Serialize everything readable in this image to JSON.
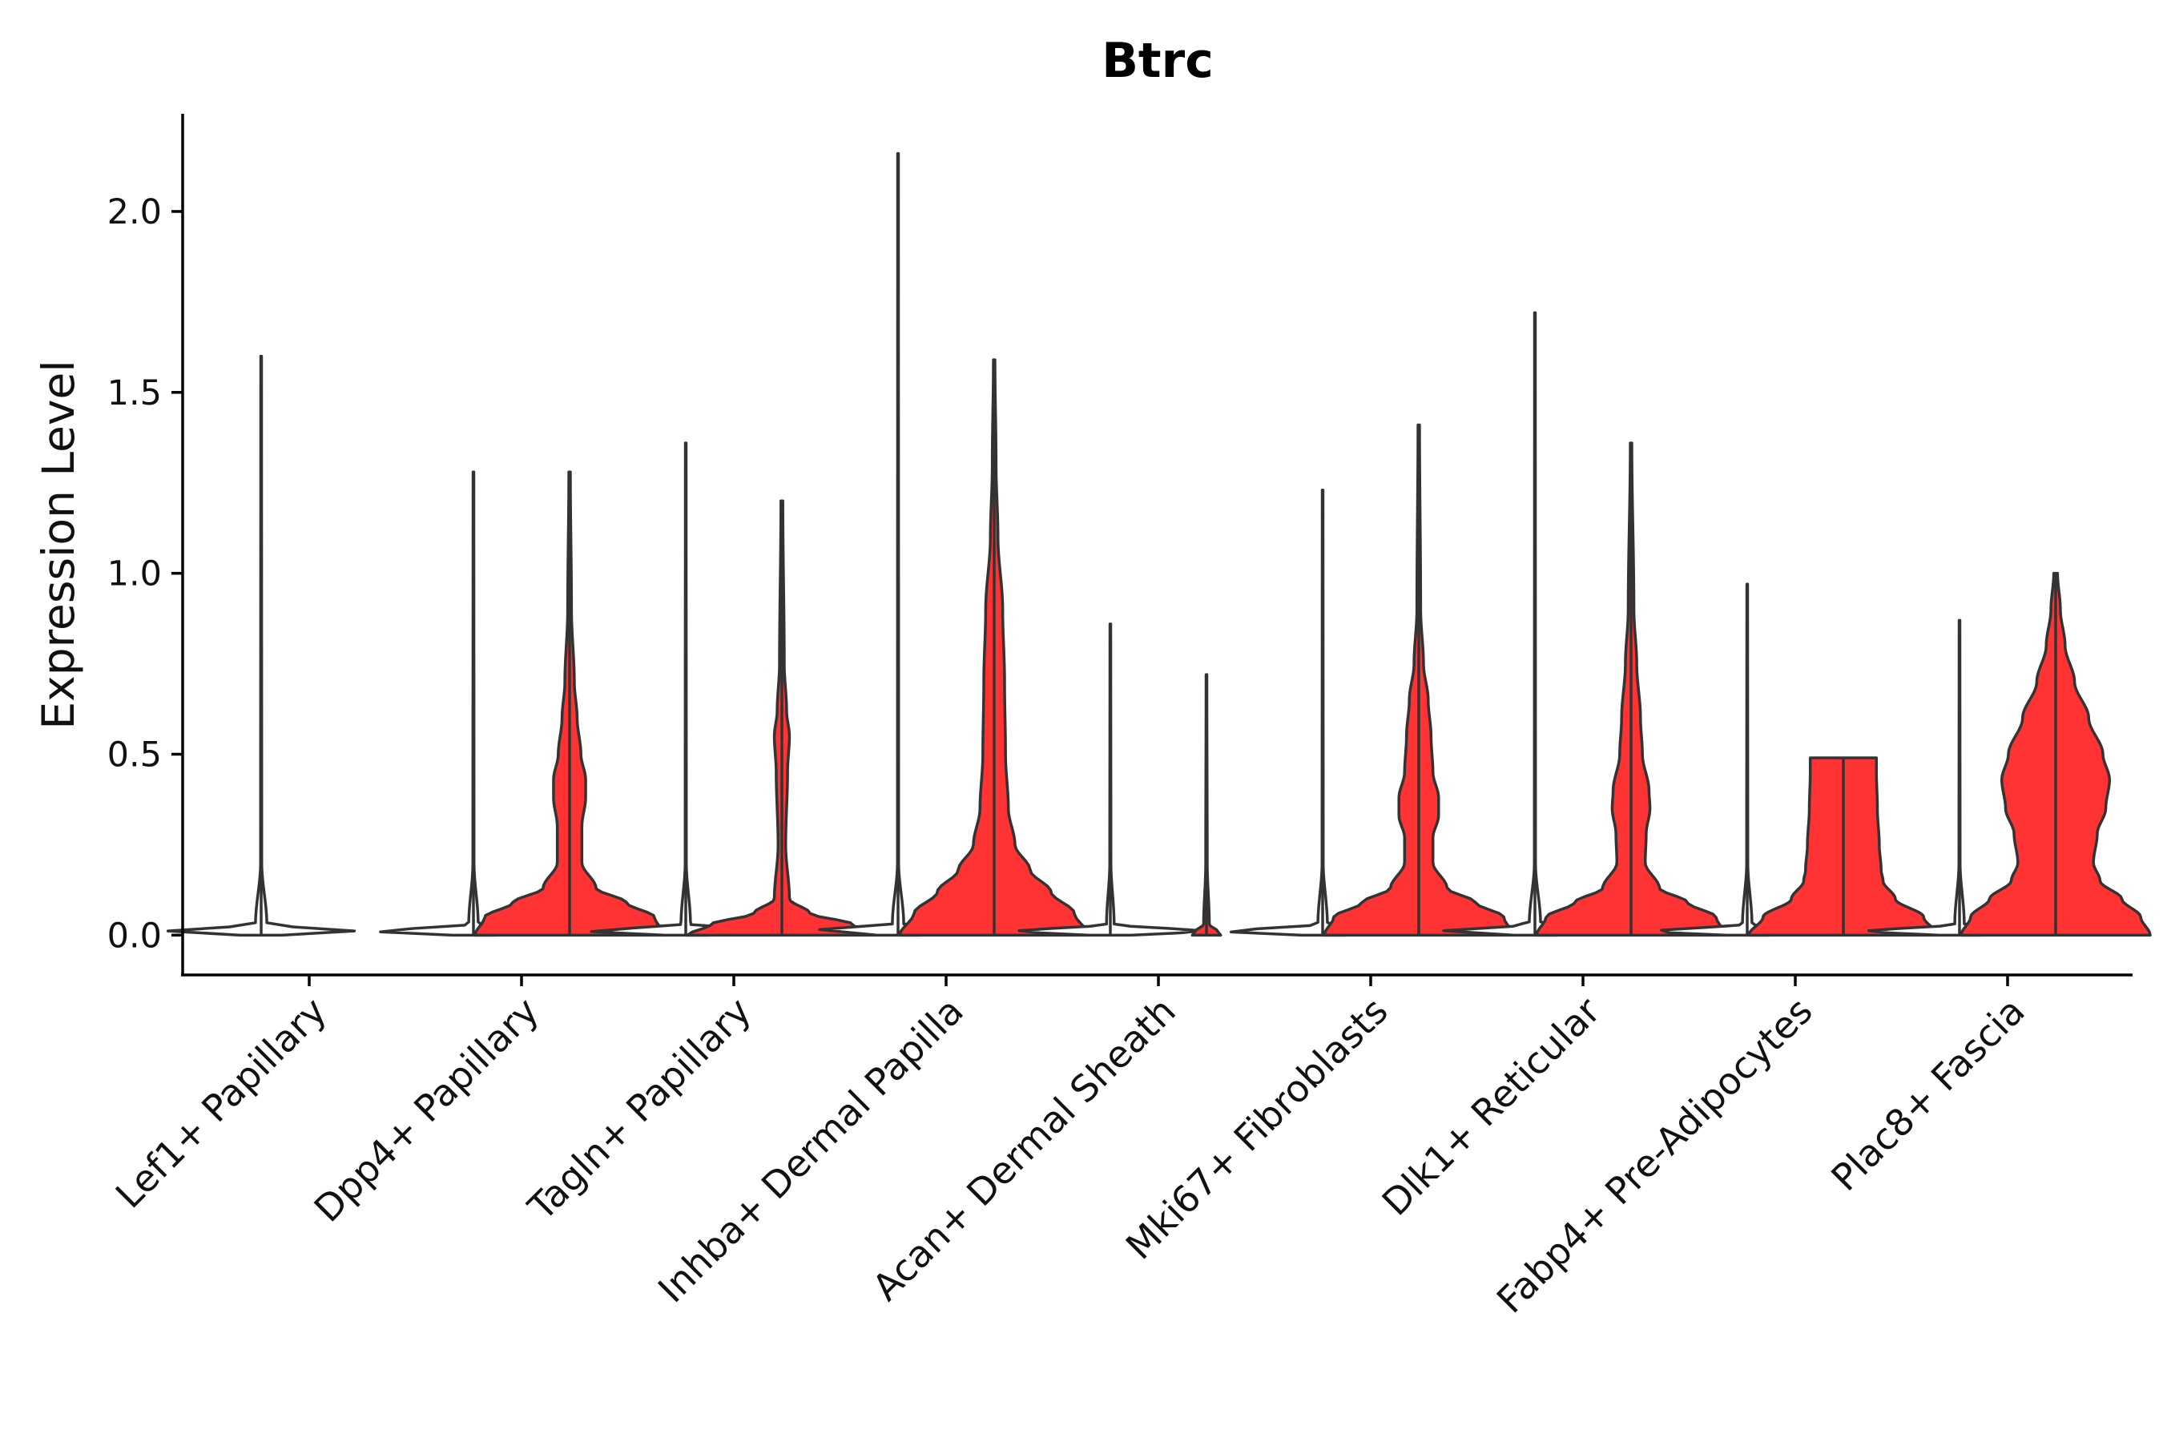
{
  "chart_data": {
    "type": "violin",
    "title": "Btrc",
    "xlabel": "",
    "ylabel": "Expression Level",
    "ylim": [
      -0.11,
      2.27
    ],
    "yticks": [
      0.0,
      0.5,
      1.0,
      1.5,
      2.0
    ],
    "ytick_labels": [
      "0.0",
      "0.5",
      "1.0",
      "1.5",
      "2.0"
    ],
    "grid": false,
    "legend": "none",
    "colors": {
      "control": "#ffffff",
      "treated": "#ff3333",
      "outline": "#333333"
    },
    "categories": [
      "Lef1+ Papillary",
      "Dpp4+ Papillary",
      "Tagln+ Papillary",
      "Inhba+ Dermal Papilla",
      "Acan+ Dermal Sheath",
      "Mki67+ Fibroblasts",
      "Dlk1+ Reticular",
      "Fabp4+ Pre-Adipocytes",
      "Plac8+ Fascia"
    ],
    "series": [
      {
        "color": "#ffffff",
        "max": [
          1.6,
          1.28,
          1.36,
          2.16,
          0.86,
          1.23,
          1.72,
          0.97,
          0.87
        ],
        "profiles": [
          [
            [
              0,
              0.22
            ],
            [
              0.01,
              1
            ],
            [
              0.03,
              0.06
            ],
            [
              0.2,
              0.006
            ],
            [
              1.6,
              0.004
            ]
          ],
          [
            [
              0,
              0.22
            ],
            [
              0.01,
              1
            ],
            [
              0.03,
              0.05
            ],
            [
              0.2,
              0.006
            ],
            [
              1.28,
              0.004
            ]
          ],
          [
            [
              0,
              0.22
            ],
            [
              0.01,
              1
            ],
            [
              0.03,
              0.05
            ],
            [
              0.2,
              0.006
            ],
            [
              1.36,
              0.004
            ]
          ],
          [
            [
              0,
              0.22
            ],
            [
              0.01,
              1
            ],
            [
              0.03,
              0.06
            ],
            [
              0.2,
              0.006
            ],
            [
              2.16,
              0.004
            ]
          ],
          [
            [
              0,
              0.22
            ],
            [
              0.01,
              1
            ],
            [
              0.03,
              0.04
            ],
            [
              0.2,
              0.006
            ],
            [
              0.86,
              0.004
            ]
          ],
          [
            [
              0,
              0.22
            ],
            [
              0.01,
              1
            ],
            [
              0.03,
              0.05
            ],
            [
              0.2,
              0.006
            ],
            [
              1.23,
              0.004
            ]
          ],
          [
            [
              0,
              0.22
            ],
            [
              0.01,
              1
            ],
            [
              0.03,
              0.06
            ],
            [
              0.2,
              0.006
            ],
            [
              1.72,
              0.004
            ]
          ],
          [
            [
              0,
              0.22
            ],
            [
              0.01,
              1
            ],
            [
              0.03,
              0.05
            ],
            [
              0.2,
              0.006
            ],
            [
              0.97,
              0.004
            ]
          ],
          [
            [
              0,
              0.22
            ],
            [
              0.01,
              1
            ],
            [
              0.03,
              0.05
            ],
            [
              0.2,
              0.006
            ],
            [
              0.87,
              0.004
            ]
          ]
        ]
      },
      {
        "color": "#ff3333",
        "max": [
          null,
          1.28,
          1.2,
          1.59,
          0.72,
          1.41,
          1.36,
          0.49,
          1.0
        ],
        "profiles": [
          null,
          [
            [
              0,
              1
            ],
            [
              0.05,
              0.9
            ],
            [
              0.09,
              0.6
            ],
            [
              0.13,
              0.28
            ],
            [
              0.2,
              0.13
            ],
            [
              0.3,
              0.13
            ],
            [
              0.38,
              0.17
            ],
            [
              0.43,
              0.17
            ],
            [
              0.5,
              0.12
            ],
            [
              0.6,
              0.08
            ],
            [
              0.7,
              0.05
            ],
            [
              0.9,
              0.02
            ],
            [
              1.28,
              0.008
            ]
          ],
          [
            [
              0,
              1
            ],
            [
              0.03,
              0.75
            ],
            [
              0.06,
              0.3
            ],
            [
              0.1,
              0.08
            ],
            [
              0.25,
              0.04
            ],
            [
              0.45,
              0.06
            ],
            [
              0.55,
              0.08
            ],
            [
              0.62,
              0.05
            ],
            [
              0.75,
              0.025
            ],
            [
              1.2,
              0.01
            ]
          ],
          [
            [
              0,
              1
            ],
            [
              0.06,
              0.85
            ],
            [
              0.12,
              0.6
            ],
            [
              0.18,
              0.38
            ],
            [
              0.25,
              0.22
            ],
            [
              0.35,
              0.15
            ],
            [
              0.5,
              0.12
            ],
            [
              0.7,
              0.11
            ],
            [
              0.9,
              0.09
            ],
            [
              1.1,
              0.04
            ],
            [
              1.3,
              0.02
            ],
            [
              1.59,
              0.008
            ]
          ],
          [
            [
              0,
              0.15
            ],
            [
              0.01,
              0.12
            ],
            [
              0.03,
              0.03
            ],
            [
              0.2,
              0.008
            ],
            [
              0.72,
              0.004
            ]
          ],
          [
            [
              0,
              1
            ],
            [
              0.05,
              0.9
            ],
            [
              0.09,
              0.6
            ],
            [
              0.13,
              0.3
            ],
            [
              0.2,
              0.15
            ],
            [
              0.27,
              0.15
            ],
            [
              0.33,
              0.21
            ],
            [
              0.38,
              0.21
            ],
            [
              0.45,
              0.15
            ],
            [
              0.55,
              0.13
            ],
            [
              0.65,
              0.1
            ],
            [
              0.75,
              0.05
            ],
            [
              0.9,
              0.02
            ],
            [
              1.41,
              0.008
            ]
          ],
          [
            [
              0,
              1
            ],
            [
              0.05,
              0.9
            ],
            [
              0.09,
              0.6
            ],
            [
              0.13,
              0.3
            ],
            [
              0.2,
              0.15
            ],
            [
              0.28,
              0.16
            ],
            [
              0.35,
              0.2
            ],
            [
              0.4,
              0.19
            ],
            [
              0.5,
              0.12
            ],
            [
              0.6,
              0.1
            ],
            [
              0.75,
              0.06
            ],
            [
              0.9,
              0.03
            ],
            [
              1.36,
              0.008
            ]
          ],
          [
            [
              0,
              1
            ],
            [
              0.05,
              0.85
            ],
            [
              0.1,
              0.55
            ],
            [
              0.15,
              0.42
            ],
            [
              0.18,
              0.4
            ],
            [
              0.25,
              0.38
            ],
            [
              0.35,
              0.36
            ],
            [
              0.45,
              0.35
            ],
            [
              0.49,
              0.35
            ]
          ],
          [
            [
              0,
              1
            ],
            [
              0.05,
              0.9
            ],
            [
              0.1,
              0.7
            ],
            [
              0.15,
              0.47
            ],
            [
              0.2,
              0.4
            ],
            [
              0.28,
              0.44
            ],
            [
              0.35,
              0.53
            ],
            [
              0.43,
              0.57
            ],
            [
              0.5,
              0.5
            ],
            [
              0.6,
              0.35
            ],
            [
              0.7,
              0.2
            ],
            [
              0.8,
              0.1
            ],
            [
              0.9,
              0.05
            ],
            [
              1.0,
              0.02
            ]
          ]
        ]
      }
    ]
  }
}
